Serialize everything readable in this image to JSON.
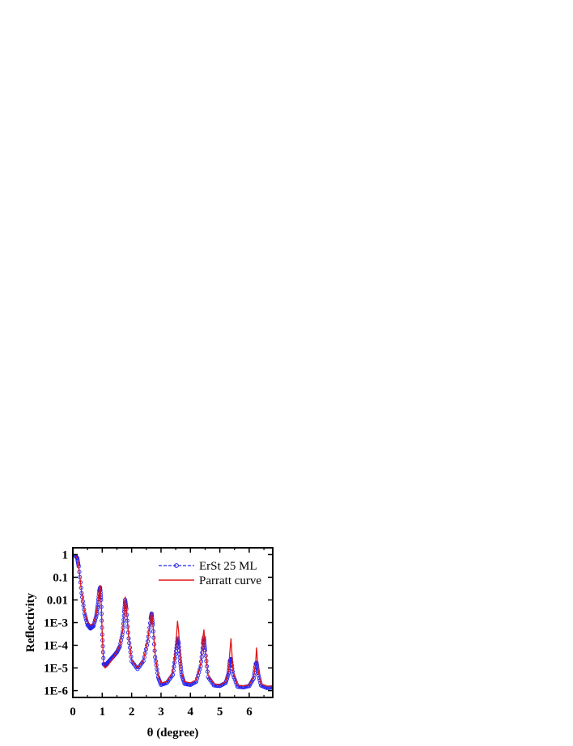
{
  "chart_data": {
    "type": "line",
    "title": "",
    "xlabel": "θ (degree)",
    "ylabel": "Reflectivity",
    "y_scale": "log",
    "xlim": [
      0,
      6.8
    ],
    "ylim": [
      5e-07,
      2
    ],
    "x_ticks": [
      0,
      1,
      2,
      3,
      4,
      5,
      6
    ],
    "x_tick_labels": [
      "0",
      "1",
      "2",
      "3",
      "4",
      "5",
      "6"
    ],
    "y_ticks": [
      1e-06,
      1e-05,
      0.0001,
      0.001,
      0.01,
      0.1,
      1
    ],
    "y_tick_labels": [
      "1E-6",
      "1E-5",
      "1E-4",
      "1E-3",
      "0.01",
      "0.1",
      "1"
    ],
    "grid": false,
    "legend_position": "top-right",
    "series": [
      {
        "name": "ErSt 25 ML",
        "style": "dashed line with open circle markers",
        "color": "#2222ee",
        "x": [
          0.1,
          0.15,
          0.2,
          0.3,
          0.4,
          0.5,
          0.6,
          0.7,
          0.8,
          0.85,
          0.9,
          0.93,
          0.96,
          1.0,
          1.05,
          1.1,
          1.2,
          1.3,
          1.4,
          1.5,
          1.6,
          1.7,
          1.75,
          1.78,
          1.82,
          1.9,
          2.0,
          2.2,
          2.4,
          2.55,
          2.65,
          2.68,
          2.72,
          2.8,
          2.9,
          3.0,
          3.2,
          3.4,
          3.5,
          3.56,
          3.6,
          3.65,
          3.7,
          3.8,
          4.0,
          4.2,
          4.35,
          4.43,
          4.46,
          4.5,
          4.6,
          4.8,
          5.0,
          5.2,
          5.3,
          5.34,
          5.38,
          5.45,
          5.6,
          5.8,
          6.0,
          6.15,
          6.22,
          6.25,
          6.3,
          6.4,
          6.6,
          6.8
        ],
        "y": [
          0.85,
          0.7,
          0.3,
          0.02,
          0.0025,
          0.0008,
          0.00055,
          0.0007,
          0.002,
          0.006,
          0.025,
          0.035,
          0.01,
          0.0003,
          1.5e-05,
          1.3e-05,
          1.8e-05,
          2.5e-05,
          3.5e-05,
          5e-05,
          9e-05,
          0.0004,
          0.003,
          0.01,
          0.004,
          0.0002,
          2e-05,
          9e-06,
          2e-05,
          0.00015,
          0.0015,
          0.0025,
          0.0008,
          3e-05,
          4e-06,
          1.8e-06,
          2.2e-06,
          5e-06,
          4e-05,
          0.0002,
          0.00012,
          2e-05,
          5e-06,
          2e-06,
          1.8e-06,
          2.5e-06,
          1.2e-05,
          0.00012,
          0.00022,
          6e-05,
          4e-06,
          1.7e-06,
          1.6e-06,
          2.2e-06,
          6e-06,
          2e-05,
          2.5e-05,
          5e-06,
          1.5e-06,
          1.4e-06,
          1.6e-06,
          3.5e-06,
          1.5e-05,
          1.7e-05,
          6e-06,
          1.7e-06,
          1.3e-06,
          1.4e-06
        ]
      },
      {
        "name": "Parratt curve",
        "style": "solid line",
        "color": "#e01818",
        "x": [
          0.1,
          0.15,
          0.2,
          0.3,
          0.4,
          0.5,
          0.6,
          0.7,
          0.8,
          0.85,
          0.9,
          0.93,
          0.96,
          1.0,
          1.05,
          1.1,
          1.2,
          1.3,
          1.4,
          1.5,
          1.6,
          1.7,
          1.75,
          1.78,
          1.82,
          1.9,
          2.0,
          2.2,
          2.4,
          2.55,
          2.65,
          2.68,
          2.72,
          2.8,
          2.9,
          3.0,
          3.2,
          3.4,
          3.5,
          3.56,
          3.6,
          3.65,
          3.7,
          3.8,
          4.0,
          4.2,
          4.35,
          4.43,
          4.46,
          4.5,
          4.6,
          4.8,
          5.0,
          5.2,
          5.3,
          5.34,
          5.38,
          5.45,
          5.6,
          5.8,
          6.0,
          6.15,
          6.22,
          6.25,
          6.3,
          6.4,
          6.6,
          6.8
        ],
        "y": [
          0.85,
          0.7,
          0.3,
          0.02,
          0.003,
          0.0011,
          0.0008,
          0.0009,
          0.0025,
          0.008,
          0.03,
          0.045,
          0.012,
          0.0003,
          1.2e-05,
          1e-05,
          1.3e-05,
          2e-05,
          3.2e-05,
          5.5e-05,
          0.0001,
          0.0005,
          0.004,
          0.014,
          0.005,
          0.00025,
          2.2e-05,
          1e-05,
          2.2e-05,
          0.00018,
          0.0018,
          0.003,
          0.001,
          4e-05,
          5e-06,
          2.2e-06,
          2.5e-06,
          7e-06,
          8e-05,
          0.0012,
          0.0004,
          3e-05,
          6e-06,
          2.5e-06,
          2.2e-06,
          3e-06,
          1.5e-05,
          0.00025,
          0.0005,
          8e-05,
          5e-06,
          2e-06,
          1.8e-06,
          2.5e-06,
          8e-06,
          5e-05,
          0.0002,
          7e-06,
          1.8e-06,
          1.6e-06,
          1.8e-06,
          4e-06,
          2e-05,
          8e-05,
          8e-06,
          2e-06,
          1.6e-06,
          1.6e-06
        ]
      }
    ]
  }
}
